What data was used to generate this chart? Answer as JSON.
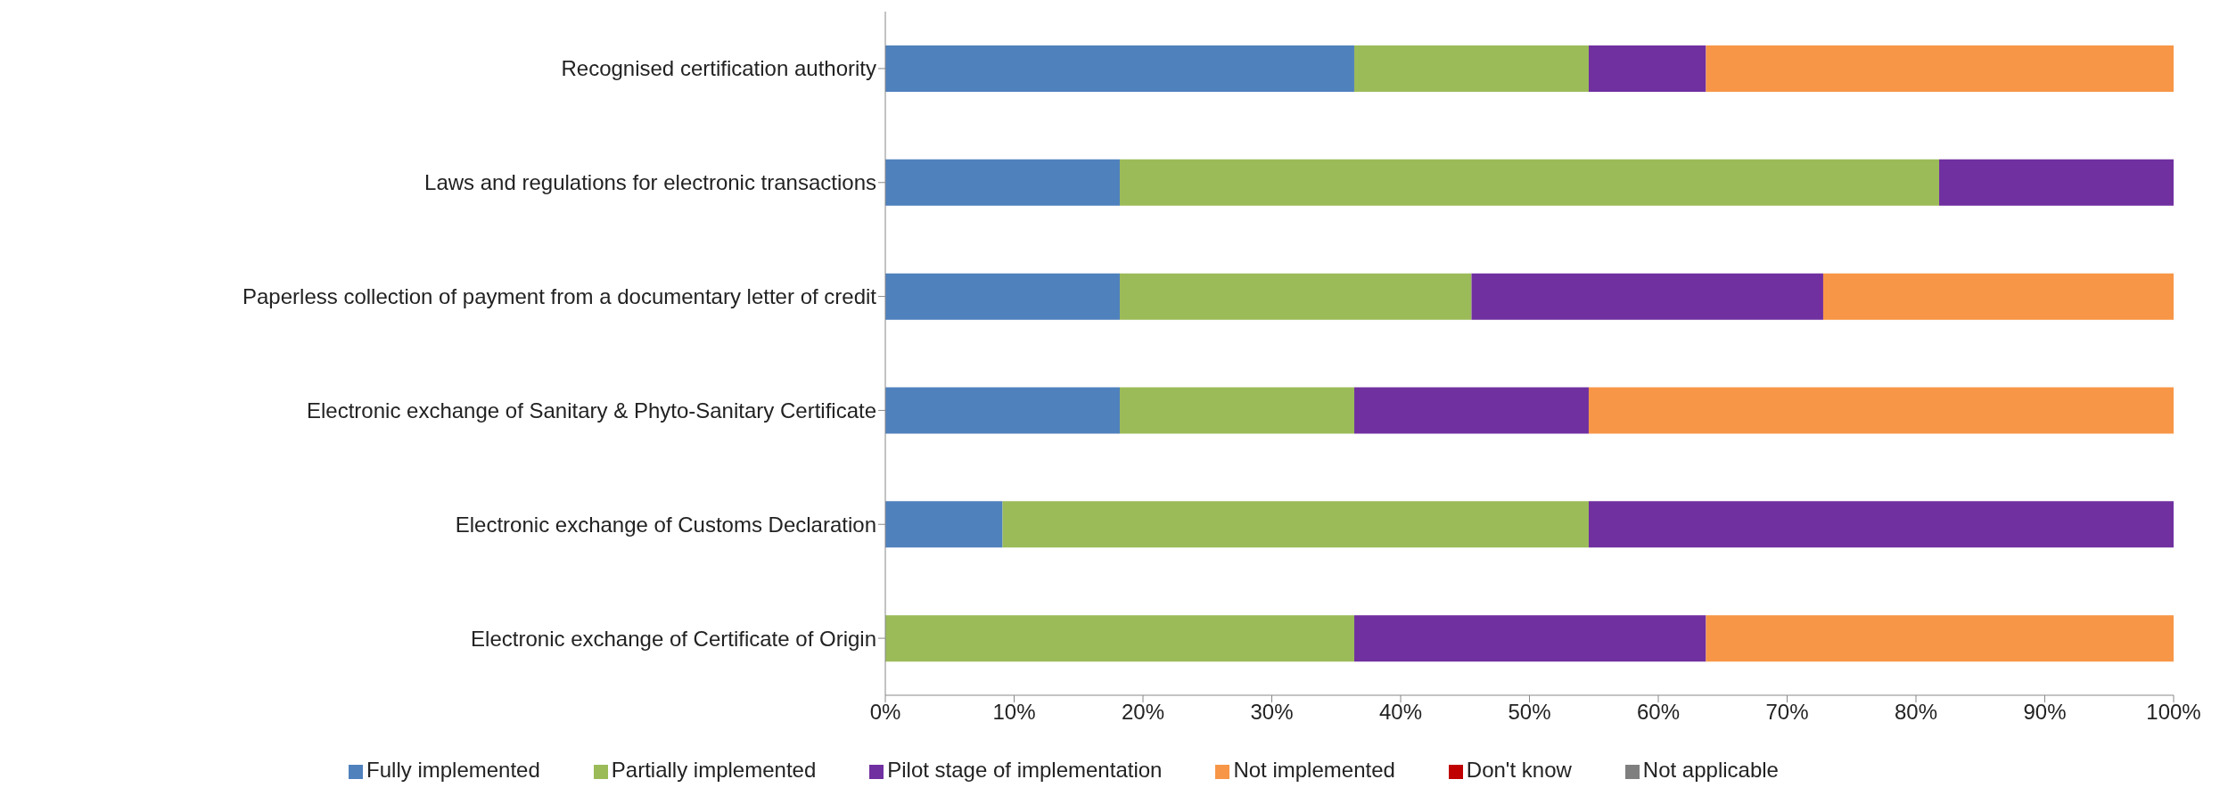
{
  "chart_data": {
    "type": "bar",
    "orientation": "horizontal",
    "stacked": true,
    "categories": [
      "Recognised certification authority",
      "Laws and regulations for electronic transactions",
      "Paperless collection of payment from a documentary letter of credit",
      "Electronic exchange of Sanitary & Phyto-Sanitary Certificate",
      "Electronic exchange of Customs Declaration",
      "Electronic exchange of Certificate of Origin"
    ],
    "series": [
      {
        "name": "Fully implemented",
        "color": "#4f81bd",
        "values": [
          36.4,
          18.2,
          18.2,
          18.2,
          9.1,
          0
        ]
      },
      {
        "name": "Partially implemented",
        "color": "#9bbb59",
        "values": [
          18.2,
          63.6,
          27.3,
          18.2,
          45.5,
          36.4
        ]
      },
      {
        "name": "Pilot stage of implementation",
        "color": "#7030a0",
        "values": [
          9.1,
          18.2,
          27.3,
          18.2,
          45.4,
          27.3
        ]
      },
      {
        "name": "Not implemented",
        "color": "#f79646",
        "values": [
          36.3,
          0,
          27.2,
          45.4,
          0,
          36.3
        ]
      },
      {
        "name": "Don't know",
        "color": "#c00000",
        "values": [
          0,
          0,
          0,
          0,
          0,
          0
        ]
      },
      {
        "name": "Not applicable",
        "color": "#7f7f7f",
        "values": [
          0,
          0,
          0,
          0,
          0,
          0
        ]
      }
    ],
    "xlim": [
      0,
      100
    ],
    "xticks": [
      {
        "value": 0,
        "label": "0%"
      },
      {
        "value": 10,
        "label": "10%"
      },
      {
        "value": 20,
        "label": "20%"
      },
      {
        "value": 30,
        "label": "30%"
      },
      {
        "value": 40,
        "label": "40%"
      },
      {
        "value": 50,
        "label": "50%"
      },
      {
        "value": 60,
        "label": "60%"
      },
      {
        "value": 70,
        "label": "70%"
      },
      {
        "value": 80,
        "label": "80%"
      },
      {
        "value": 90,
        "label": "90%"
      },
      {
        "value": 100,
        "label": "100%"
      }
    ],
    "grid": false,
    "legend": "bottom"
  }
}
